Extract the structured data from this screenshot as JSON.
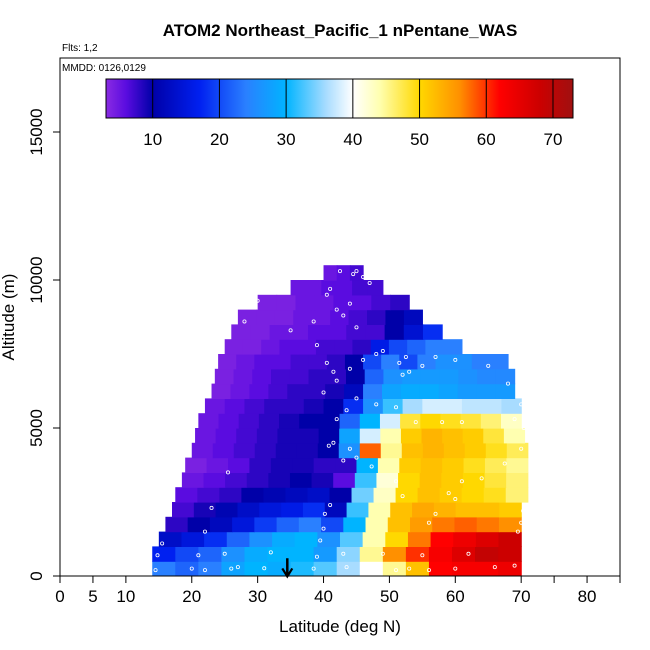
{
  "chart_data": {
    "type": "heatmap",
    "title": "ATOM2 Northeast_Pacific_1 nPentane_WAS",
    "subtitle_flights": "Flts: 1,2",
    "subtitle_dates": "MMDD: 0126,0129",
    "xlabel": "Latitude (deg N)",
    "ylabel": "Altitude (m)",
    "xlim": [
      0,
      85
    ],
    "ylim": [
      0,
      17500
    ],
    "xticks": [
      0,
      5,
      10,
      20,
      30,
      40,
      50,
      60,
      70,
      80
    ],
    "xticks_unlabeled": [
      75,
      85
    ],
    "yticks": [
      0,
      5000,
      10000,
      15000
    ],
    "colorbar": {
      "range": [
        3,
        73
      ],
      "ticks": [
        10,
        20,
        30,
        40,
        50,
        60,
        70
      ],
      "stops": [
        {
          "v": 3,
          "c": "#8a2be2"
        },
        {
          "v": 6,
          "c": "#5a0ce0"
        },
        {
          "v": 10,
          "c": "#0000a8"
        },
        {
          "v": 17,
          "c": "#0020f0"
        },
        {
          "v": 24,
          "c": "#2a80ff"
        },
        {
          "v": 30,
          "c": "#00b4ff"
        },
        {
          "v": 36,
          "c": "#a8dcff"
        },
        {
          "v": 40,
          "c": "#ffffff"
        },
        {
          "v": 44,
          "c": "#ffffb0"
        },
        {
          "v": 50,
          "c": "#ffd800"
        },
        {
          "v": 56,
          "c": "#ff9000"
        },
        {
          "v": 62,
          "c": "#ff0000"
        },
        {
          "v": 68,
          "c": "#cc0000"
        },
        {
          "v": 73,
          "c": "#a01010"
        }
      ]
    },
    "arrow_marker_lat": 34.5,
    "rows": [
      {
        "alt": 250,
        "lat_min": 14.0,
        "lat_max": 70.0,
        "values": [
          24,
          22,
          24,
          28,
          30,
          29,
          31,
          33,
          36,
          40,
          45,
          52,
          62,
          63,
          63,
          64
        ]
      },
      {
        "alt": 750,
        "lat_min": 14.0,
        "lat_max": 70.0,
        "values": [
          17,
          20,
          22,
          26,
          29,
          30,
          30,
          27,
          35,
          45,
          56,
          60,
          63,
          66,
          69,
          68
        ]
      },
      {
        "alt": 1250,
        "lat_min": 15.0,
        "lat_max": 70.0,
        "values": [
          13,
          15,
          18,
          22,
          26,
          29,
          30,
          26,
          33,
          44,
          50,
          57,
          62,
          64,
          66,
          68
        ]
      },
      {
        "alt": 1750,
        "lat_min": 16.0,
        "lat_max": 70.0,
        "values": [
          8,
          10,
          12,
          15,
          19,
          22,
          24,
          20,
          30,
          44,
          52,
          55,
          57,
          58,
          57,
          56
        ]
      },
      {
        "alt": 2250,
        "lat_min": 17.0,
        "lat_max": 70.0,
        "values": [
          7,
          9,
          11,
          13,
          15,
          16,
          18,
          12,
          32,
          44,
          52,
          54,
          53,
          52,
          52,
          51
        ]
      },
      {
        "alt": 2750,
        "lat_min": 17.5,
        "lat_max": 71.0,
        "values": [
          6,
          7,
          8,
          10,
          11,
          12,
          13,
          10,
          34,
          43,
          50,
          52,
          51,
          50,
          49,
          46
        ]
      },
      {
        "alt": 3250,
        "lat_min": 18.5,
        "lat_max": 71.0,
        "values": [
          5,
          6,
          7,
          8,
          9,
          10,
          9,
          6,
          32,
          42,
          50,
          52,
          51,
          50,
          48,
          46
        ]
      },
      {
        "alt": 3750,
        "lat_min": 19.0,
        "lat_max": 71.0,
        "values": [
          4,
          5,
          6,
          8,
          9,
          9,
          8,
          8,
          30,
          44,
          51,
          52,
          51,
          49,
          47,
          45
        ]
      },
      {
        "alt": 4250,
        "lat_min": 20.0,
        "lat_max": 71.0,
        "values": [
          5,
          6,
          7,
          8,
          9,
          9,
          10,
          26,
          58,
          45,
          52,
          53,
          52,
          51,
          49,
          47
        ]
      },
      {
        "alt": 4750,
        "lat_min": 20.5,
        "lat_max": 70.5,
        "values": [
          5,
          6,
          7,
          8,
          9,
          9,
          10,
          28,
          38,
          44,
          51,
          53,
          52,
          51,
          48,
          44
        ]
      },
      {
        "alt": 5250,
        "lat_min": 21.0,
        "lat_max": 70.0,
        "values": [
          5,
          6,
          7,
          8,
          9,
          10,
          10,
          22,
          30,
          38,
          48,
          50,
          49,
          48,
          46,
          43
        ]
      },
      {
        "alt": 5750,
        "lat_min": 22.0,
        "lat_max": 70.0,
        "values": [
          5,
          6,
          7,
          8,
          8,
          9,
          10,
          18,
          26,
          32,
          36,
          38,
          38,
          37,
          37,
          36
        ]
      },
      {
        "alt": 6250,
        "lat_min": 23.0,
        "lat_max": 69.0,
        "values": [
          4,
          5,
          6,
          7,
          8,
          8,
          9,
          12,
          24,
          28,
          29,
          29,
          28,
          27,
          27,
          27
        ]
      },
      {
        "alt": 6750,
        "lat_min": 23.5,
        "lat_max": 69.0,
        "values": [
          4,
          5,
          6,
          7,
          7,
          8,
          8,
          10,
          22,
          26,
          27,
          27,
          27,
          26,
          25,
          25
        ]
      },
      {
        "alt": 7250,
        "lat_min": 24.0,
        "lat_max": 68.0,
        "values": [
          4,
          5,
          6,
          6,
          7,
          7,
          8,
          10,
          20,
          24,
          20,
          24,
          26,
          26,
          24,
          24
        ]
      },
      {
        "alt": 7750,
        "lat_min": 25.0,
        "lat_max": 61.0,
        "values": [
          4,
          4,
          5,
          6,
          6,
          7,
          7,
          8,
          16,
          20,
          22,
          24,
          24
        ]
      },
      {
        "alt": 8250,
        "lat_min": 26.0,
        "lat_max": 58.0,
        "values": [
          4,
          4,
          5,
          5,
          6,
          6,
          7,
          7,
          10,
          14,
          18
        ]
      },
      {
        "alt": 8750,
        "lat_min": 27.0,
        "lat_max": 55.0,
        "values": [
          4,
          4,
          4,
          5,
          5,
          6,
          7,
          8,
          10,
          12
        ]
      },
      {
        "alt": 9250,
        "lat_min": 30.0,
        "lat_max": 53.0,
        "values": [
          4,
          4,
          5,
          5,
          6,
          6,
          7,
          8
        ]
      },
      {
        "alt": 9750,
        "lat_min": 35.0,
        "lat_max": 49.0,
        "values": [
          5,
          5,
          6,
          6,
          7,
          7
        ]
      },
      {
        "alt": 10250,
        "lat_min": 40.0,
        "lat_max": 46.0,
        "values": [
          5,
          6,
          7
        ]
      }
    ],
    "sample_points": [
      [
        14.5,
        200
      ],
      [
        14.8,
        700
      ],
      [
        15.5,
        1100
      ],
      [
        20,
        250
      ],
      [
        21,
        700
      ],
      [
        22,
        200
      ],
      [
        25,
        750
      ],
      [
        26,
        250
      ],
      [
        27,
        300
      ],
      [
        31,
        260
      ],
      [
        32,
        800
      ],
      [
        38.5,
        250
      ],
      [
        39,
        650
      ],
      [
        39.5,
        1200
      ],
      [
        40,
        1600
      ],
      [
        40.2,
        2100
      ],
      [
        41,
        2400
      ],
      [
        43,
        750
      ],
      [
        43.5,
        300
      ],
      [
        47,
        250
      ],
      [
        49,
        750
      ],
      [
        51,
        200
      ],
      [
        53,
        250
      ],
      [
        55,
        700
      ],
      [
        56,
        200
      ],
      [
        60,
        250
      ],
      [
        62,
        750
      ],
      [
        66,
        300
      ],
      [
        69,
        350
      ],
      [
        69.5,
        1500
      ],
      [
        70,
        1800
      ],
      [
        70.3,
        2200
      ],
      [
        22,
        1500
      ],
      [
        23,
        2300
      ],
      [
        25.5,
        3500
      ],
      [
        40.8,
        4400
      ],
      [
        41.5,
        4500
      ],
      [
        43,
        3900
      ],
      [
        44,
        4300
      ],
      [
        45,
        4000
      ],
      [
        47.3,
        3700
      ],
      [
        51,
        3200
      ],
      [
        52,
        2700
      ],
      [
        56,
        1800
      ],
      [
        57,
        2100
      ],
      [
        59,
        2800
      ],
      [
        60,
        2600
      ],
      [
        61,
        3200
      ],
      [
        64,
        3300
      ],
      [
        67.5,
        3800
      ],
      [
        70,
        4300
      ],
      [
        70.4,
        5000
      ],
      [
        42,
        5300
      ],
      [
        43.5,
        5600
      ],
      [
        45,
        6000
      ],
      [
        48,
        5800
      ],
      [
        51,
        5700
      ],
      [
        54,
        5200
      ],
      [
        58,
        5200
      ],
      [
        61,
        5200
      ],
      [
        69,
        5300
      ],
      [
        70,
        5800
      ],
      [
        44,
        7000
      ],
      [
        46,
        7300
      ],
      [
        49,
        7600
      ],
      [
        51.5,
        7200
      ],
      [
        52.5,
        7400
      ],
      [
        55,
        7100
      ],
      [
        57,
        7400
      ],
      [
        60,
        7300
      ],
      [
        65,
        7100
      ],
      [
        68,
        6500
      ],
      [
        35,
        8300
      ],
      [
        39,
        7800
      ],
      [
        40.5,
        7200
      ],
      [
        41.5,
        6900
      ],
      [
        42,
        6600
      ],
      [
        40,
        6200
      ],
      [
        38.5,
        8600
      ],
      [
        45,
        8400
      ],
      [
        48,
        7500
      ],
      [
        52,
        6800
      ],
      [
        53,
        6900
      ],
      [
        40.5,
        9500
      ],
      [
        41,
        9700
      ],
      [
        42,
        9000
      ],
      [
        43,
        8800
      ],
      [
        44,
        9200
      ],
      [
        44.5,
        10200
      ],
      [
        45,
        10300
      ],
      [
        46,
        10100
      ],
      [
        47,
        9900
      ],
      [
        42.5,
        10300
      ],
      [
        28,
        8600
      ],
      [
        29,
        9100
      ],
      [
        30,
        9300
      ]
    ]
  }
}
